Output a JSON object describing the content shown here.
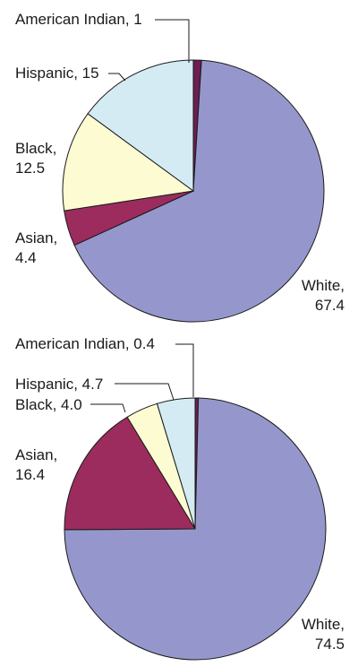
{
  "chart_data": [
    {
      "type": "pie",
      "title": "",
      "slices": [
        {
          "name": "American Indian",
          "value": 1,
          "color": "#6b1f52",
          "label_lines": [
            "American Indian, 1"
          ]
        },
        {
          "name": "White",
          "value": 67.4,
          "color": "#9597cc",
          "label_lines": [
            "White,",
            "67.4"
          ]
        },
        {
          "name": "Asian",
          "value": 4.4,
          "color": "#9c2c5e",
          "label_lines": [
            "Asian,",
            "4.4"
          ]
        },
        {
          "name": "Black",
          "value": 12.5,
          "color": "#fcfbd2",
          "label_lines": [
            "Black,",
            "12.5"
          ]
        },
        {
          "name": "Hispanic",
          "value": 15,
          "color": "#d4ebf4",
          "label_lines": [
            "Hispanic, 15"
          ]
        }
      ]
    },
    {
      "type": "pie",
      "title": "",
      "slices": [
        {
          "name": "American Indian",
          "value": 0.4,
          "color": "#6b1f52",
          "label_lines": [
            "American Indian, 0.4"
          ]
        },
        {
          "name": "White",
          "value": 74.5,
          "color": "#9597cc",
          "label_lines": [
            "White,",
            "74.5"
          ]
        },
        {
          "name": "Asian",
          "value": 16.4,
          "color": "#9c2c5e",
          "label_lines": [
            "Asian,",
            "16.4"
          ]
        },
        {
          "name": "Black",
          "value": 4.0,
          "color": "#fcfbd2",
          "label_lines": [
            "Black, 4.0"
          ]
        },
        {
          "name": "Hispanic",
          "value": 4.7,
          "color": "#d4ebf4",
          "label_lines": [
            "Hispanic, 4.7"
          ]
        }
      ]
    }
  ]
}
